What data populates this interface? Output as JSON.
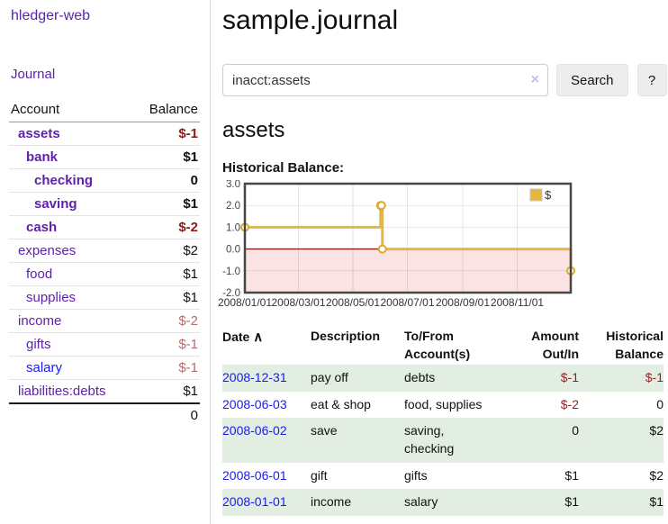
{
  "colors": {
    "link_purple": "#5e22a8",
    "link_blue": "#1a1aee",
    "neg_strong": "#8b1a1a",
    "neg_soft": "#b36e6e",
    "neg_register": "#9b1c1c",
    "row_green": "#e2eee2",
    "chart_gold": "#e6b73f",
    "chart_marker_stroke": "#dca928",
    "chart_negative_fill": "#fbe3e3",
    "chart_zero_line": "#8b1a1a",
    "chart_border": "#474747"
  },
  "sidebar": {
    "brand": "hledger-web",
    "nav_journal": "Journal",
    "header": {
      "account": "Account",
      "balance": "Balance"
    },
    "accounts": [
      {
        "name": "assets",
        "balance": "$-1",
        "level": 0,
        "bold": true
      },
      {
        "name": "bank",
        "balance": "$1",
        "level": 1,
        "bold": true
      },
      {
        "name": "checking",
        "balance": "0",
        "level": 2,
        "bold": true
      },
      {
        "name": "saving",
        "balance": "$1",
        "level": 2,
        "bold": true
      },
      {
        "name": "cash",
        "balance": "$-2",
        "level": 1,
        "bold": true
      },
      {
        "name": "expenses",
        "balance": "$2",
        "level": 0,
        "bold": false
      },
      {
        "name": "food",
        "balance": "$1",
        "level": 1,
        "bold": false
      },
      {
        "name": "supplies",
        "balance": "$1",
        "level": 1,
        "bold": false
      },
      {
        "name": "income",
        "balance": "$-2",
        "level": 0,
        "bold": false
      },
      {
        "name": "gifts",
        "balance": "$-1",
        "level": 1,
        "bold": false
      },
      {
        "name": "salary",
        "balance": "$-1",
        "level": 1,
        "bold": false,
        "unvisited": true
      },
      {
        "name": "liabilities:debts",
        "balance": "$1",
        "level": 0,
        "bold": false
      }
    ],
    "total": "0"
  },
  "main": {
    "title": "sample.journal",
    "search": {
      "value": "inacct:assets",
      "clear_icon": "×",
      "button": "Search",
      "help_button": "?"
    },
    "account_heading": "assets",
    "chart_label": "Historical Balance:"
  },
  "chart_data": {
    "type": "line",
    "style": "step",
    "title": "Historical Balance:",
    "series": [
      {
        "name": "$",
        "points": [
          [
            "2008-01-01",
            1
          ],
          [
            "2008-06-01",
            2
          ],
          [
            "2008-06-02",
            2
          ],
          [
            "2008-06-03",
            0
          ],
          [
            "2008-12-31",
            -1
          ]
        ]
      }
    ],
    "xlim": [
      "2008-01-01",
      "2008-12-31"
    ],
    "ylim": [
      -2,
      3
    ],
    "y_ticks": [
      "3.0",
      "2.0",
      "1.0",
      "0.0",
      "-1.0",
      "-2.0"
    ],
    "x_ticks": [
      "2008/01/01",
      "2008/03/01",
      "2008/05/01",
      "2008/07/01",
      "2008/09/01",
      "2008/11/01"
    ],
    "grid": true,
    "negative_region_shaded": true,
    "legend": {
      "label": "$",
      "position": "top-right"
    }
  },
  "register": {
    "columns": [
      {
        "label": "Date",
        "align": "left"
      },
      {
        "label": "Description",
        "align": "left"
      },
      {
        "label": "To/From Account(s)",
        "align": "left"
      },
      {
        "label": "Amount Out/In",
        "align": "right"
      },
      {
        "label": "Historical Balance",
        "align": "right"
      }
    ],
    "sort_indicator": "∧",
    "rows": [
      {
        "date": "2008-12-31",
        "description": "pay off",
        "accounts": "debts",
        "amount": "$-1",
        "balance": "$-1"
      },
      {
        "date": "2008-06-03",
        "description": "eat & shop",
        "accounts": "food, supplies",
        "amount": "$-2",
        "balance": "0"
      },
      {
        "date": "2008-06-02",
        "description": "save",
        "accounts": "saving, checking",
        "amount": "0",
        "balance": "$2"
      },
      {
        "date": "2008-06-01",
        "description": "gift",
        "accounts": "gifts",
        "amount": "$1",
        "balance": "$2"
      },
      {
        "date": "2008-01-01",
        "description": "income",
        "accounts": "salary",
        "amount": "$1",
        "balance": "$1"
      }
    ]
  }
}
